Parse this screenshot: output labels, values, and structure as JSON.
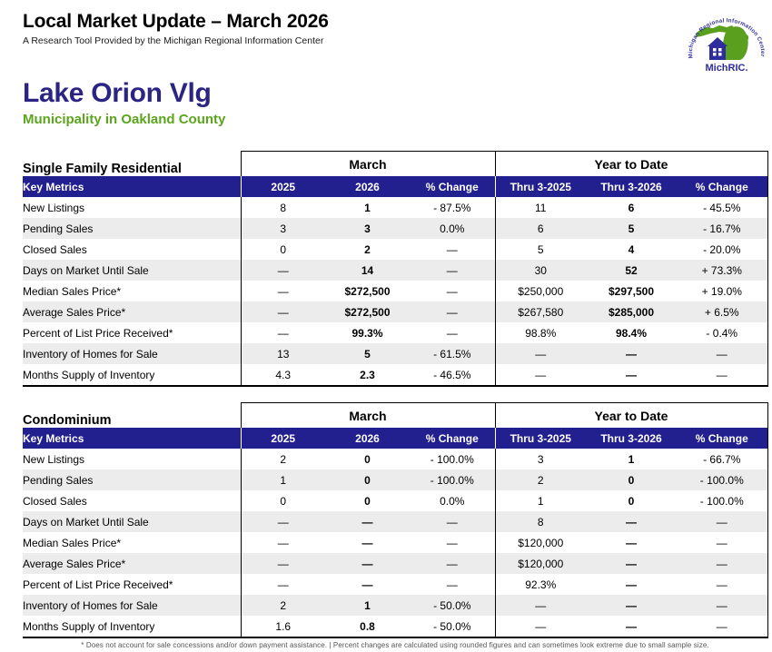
{
  "header": {
    "title": "Local Market Update – March 2026",
    "subtitle": "A Research Tool Provided by the Michigan Regional Information Center",
    "logo": {
      "arc_text": "Michigan Regional Information Center",
      "brand": "MichRIC."
    }
  },
  "location": {
    "name": "Lake Orion Vlg",
    "subtitle": "Municipality in Oakland County"
  },
  "colors": {
    "header_navy": "#221f8f",
    "location_navy": "#2b2483",
    "accent_green": "#5ba51d",
    "row_stripe_gray": "#ececec"
  },
  "tables": [
    {
      "section_label": "Single Family Residential",
      "group_headers": [
        "March",
        "Year to Date"
      ],
      "key_metrics_label": "Key Metrics",
      "columns": [
        "2025",
        "2026",
        "% Change",
        "Thru 3-2025",
        "Thru 3-2026",
        "% Change"
      ],
      "rows": [
        {
          "metric": "New Listings",
          "values": [
            "8",
            "1",
            "- 87.5%",
            "11",
            "6",
            "- 45.5%"
          ]
        },
        {
          "metric": "Pending Sales",
          "values": [
            "3",
            "3",
            "0.0%",
            "6",
            "5",
            "- 16.7%"
          ]
        },
        {
          "metric": "Closed Sales",
          "values": [
            "0",
            "2",
            "—",
            "5",
            "4",
            "- 20.0%"
          ]
        },
        {
          "metric": "Days on Market Until Sale",
          "values": [
            "—",
            "14",
            "—",
            "30",
            "52",
            "+ 73.3%"
          ]
        },
        {
          "metric": "Median Sales Price*",
          "values": [
            "—",
            "$272,500",
            "—",
            "$250,000",
            "$297,500",
            "+ 19.0%"
          ]
        },
        {
          "metric": "Average Sales Price*",
          "values": [
            "—",
            "$272,500",
            "—",
            "$267,580",
            "$285,000",
            "+ 6.5%"
          ]
        },
        {
          "metric": "Percent of List Price Received*",
          "values": [
            "—",
            "99.3%",
            "—",
            "98.8%",
            "98.4%",
            "- 0.4%"
          ]
        },
        {
          "metric": "Inventory of Homes for Sale",
          "values": [
            "13",
            "5",
            "- 61.5%",
            "—",
            "—",
            "—"
          ]
        },
        {
          "metric": "Months Supply of Inventory",
          "values": [
            "4.3",
            "2.3",
            "- 46.5%",
            "—",
            "—",
            "—"
          ]
        }
      ]
    },
    {
      "section_label": "Condominium",
      "group_headers": [
        "March",
        "Year to Date"
      ],
      "key_metrics_label": "Key Metrics",
      "columns": [
        "2025",
        "2026",
        "% Change",
        "Thru 3-2025",
        "Thru 3-2026",
        "% Change"
      ],
      "rows": [
        {
          "metric": "New Listings",
          "values": [
            "2",
            "0",
            "- 100.0%",
            "3",
            "1",
            "- 66.7%"
          ]
        },
        {
          "metric": "Pending Sales",
          "values": [
            "1",
            "0",
            "- 100.0%",
            "2",
            "0",
            "- 100.0%"
          ]
        },
        {
          "metric": "Closed Sales",
          "values": [
            "0",
            "0",
            "0.0%",
            "1",
            "0",
            "- 100.0%"
          ]
        },
        {
          "metric": "Days on Market Until Sale",
          "values": [
            "—",
            "—",
            "—",
            "8",
            "—",
            "—"
          ]
        },
        {
          "metric": "Median Sales Price*",
          "values": [
            "—",
            "—",
            "—",
            "$120,000",
            "—",
            "—"
          ]
        },
        {
          "metric": "Average Sales Price*",
          "values": [
            "—",
            "—",
            "—",
            "$120,000",
            "—",
            "—"
          ]
        },
        {
          "metric": "Percent of List Price Received*",
          "values": [
            "—",
            "—",
            "—",
            "92.3%",
            "—",
            "—"
          ]
        },
        {
          "metric": "Inventory of Homes for Sale",
          "values": [
            "2",
            "1",
            "- 50.0%",
            "—",
            "—",
            "—"
          ]
        },
        {
          "metric": "Months Supply of Inventory",
          "values": [
            "1.6",
            "0.8",
            "- 50.0%",
            "—",
            "—",
            "—"
          ]
        }
      ]
    }
  ],
  "footnote": "* Does not account for sale concessions and/or down payment assistance. | Percent changes are calculated using rounded figures and can sometimes look extreme due to small sample size."
}
